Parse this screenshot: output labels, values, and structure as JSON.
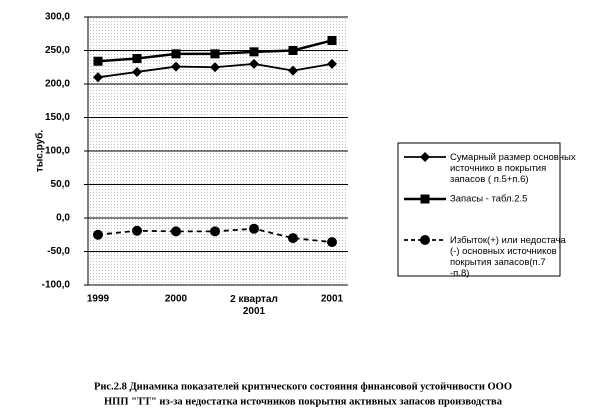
{
  "chart_data": {
    "type": "line",
    "ylabel": "тыс.руб.",
    "categories": [
      "1999",
      null,
      "2000",
      null,
      "2 квартал\n2001",
      null,
      "2001"
    ],
    "series": [
      {
        "name": "Сумарный размер основных источнико в покрытия запасов ( п.5+п.6)",
        "color": "#000000",
        "marker": "diamond",
        "dash": false,
        "values": [
          210,
          218,
          226,
          225,
          230,
          220,
          230
        ]
      },
      {
        "name": "Запасы - табл.2.5",
        "color": "#000000",
        "marker": "square",
        "dash": false,
        "values": [
          234,
          238,
          245,
          245,
          248,
          250,
          265
        ]
      },
      {
        "name": "Избыток(+) или недостача (-) основных источников покрытия запасов(п.7 -п.8)",
        "color": "#000000",
        "marker": "circle",
        "dash": true,
        "values": [
          -25,
          -19,
          -20,
          -20,
          -16,
          -30,
          -36
        ]
      }
    ],
    "ylim": [
      -100,
      300
    ],
    "yticks": [
      {
        "value": -100,
        "label": "-100,0"
      },
      {
        "value": -50,
        "label": "-50,0"
      },
      {
        "value": 0,
        "label": "0,0"
      },
      {
        "value": 50,
        "label": "50,0"
      },
      {
        "value": 100,
        "label": "100,0"
      },
      {
        "value": 150,
        "label": "150,0"
      },
      {
        "value": 200,
        "label": "200,0"
      },
      {
        "value": 250,
        "label": "250,0"
      },
      {
        "value": 300,
        "label": "300,0"
      }
    ],
    "grid": true,
    "caption": [
      "Рис.2.8 Динамика показателей критического состояния финансовой устойчивости ООО",
      "НПП \"ТТ\" из-за недостатка источников покрытия активных запасов производства"
    ]
  }
}
